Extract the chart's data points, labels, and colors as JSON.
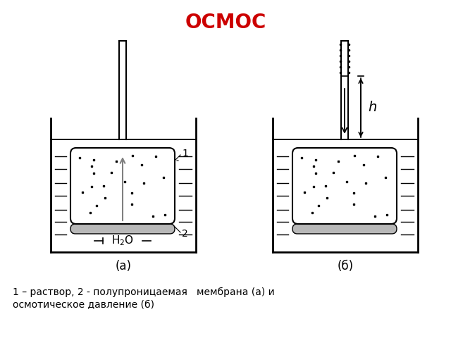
{
  "title": "ОСМОС",
  "title_color": "#cc0000",
  "title_fontsize": 20,
  "caption_line1": "1 – раствор, 2 - полупроницаемая   мембрана (а) и",
  "caption_line2": "осмотическое давление (б)",
  "label_a": "(а)",
  "label_b": "(б)",
  "h_label": "h",
  "label_1": "1",
  "label_2": "2",
  "bg_color": "#ffffff",
  "line_color": "#000000",
  "membrane_fill": "#b8b8b8",
  "dot_color": "#000000",
  "arrow_color": "#808080"
}
